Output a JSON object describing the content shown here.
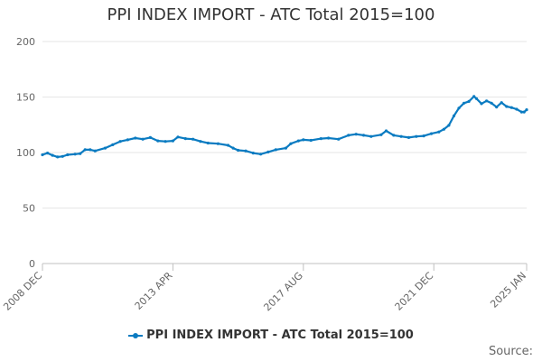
{
  "chart_data": {
    "type": "line",
    "title": "PPI INDEX IMPORT - ATC Total 2015=100",
    "xlabel": "",
    "ylabel": "",
    "ylim": [
      0,
      200
    ],
    "yticks": [
      0,
      50,
      100,
      150,
      200
    ],
    "xlim": [
      "2008-12",
      "2025-01"
    ],
    "xticks": [
      {
        "label": "2008 DEC",
        "x": "2008-12"
      },
      {
        "label": "2013 APR",
        "x": "2013-04"
      },
      {
        "label": "2017 AUG",
        "x": "2017-08"
      },
      {
        "label": "2021 DEC",
        "x": "2021-12"
      },
      {
        "label": "2025 JAN",
        "x": "2025-01"
      }
    ],
    "grid": true,
    "legend_position": "bottom-center",
    "source_label": "Source:",
    "series": [
      {
        "name": "PPI INDEX IMPORT - ATC Total 2015=100",
        "color": "#0a7bc1",
        "points": [
          [
            "2008-12",
            98
          ],
          [
            "2009-02",
            99.5
          ],
          [
            "2009-04",
            97.5
          ],
          [
            "2009-06",
            96
          ],
          [
            "2009-08",
            96.5
          ],
          [
            "2009-10",
            98
          ],
          [
            "2010-01",
            98.5
          ],
          [
            "2010-03",
            99
          ],
          [
            "2010-05",
            102.5
          ],
          [
            "2010-07",
            102.5
          ],
          [
            "2010-09",
            101.5
          ],
          [
            "2011-01",
            104
          ],
          [
            "2011-04",
            107
          ],
          [
            "2011-07",
            110
          ],
          [
            "2011-10",
            111.5
          ],
          [
            "2012-01",
            113
          ],
          [
            "2012-04",
            112
          ],
          [
            "2012-07",
            113.5
          ],
          [
            "2012-10",
            110.5
          ],
          [
            "2013-01",
            110
          ],
          [
            "2013-04",
            110.5
          ],
          [
            "2013-06",
            114
          ],
          [
            "2013-09",
            112.5
          ],
          [
            "2013-12",
            112
          ],
          [
            "2014-03",
            110
          ],
          [
            "2014-06",
            108.5
          ],
          [
            "2014-10",
            108
          ],
          [
            "2015-02",
            106.5
          ],
          [
            "2015-04",
            104
          ],
          [
            "2015-06",
            102
          ],
          [
            "2015-09",
            101.5
          ],
          [
            "2015-12",
            99.5
          ],
          [
            "2016-03",
            98.5
          ],
          [
            "2016-06",
            100.5
          ],
          [
            "2016-09",
            102.5
          ],
          [
            "2017-01",
            104
          ],
          [
            "2017-03",
            108
          ],
          [
            "2017-06",
            110.5
          ],
          [
            "2017-08",
            111.5
          ],
          [
            "2017-11",
            111
          ],
          [
            "2018-03",
            112.5
          ],
          [
            "2018-06",
            113
          ],
          [
            "2018-10",
            112
          ],
          [
            "2019-02",
            115.5
          ],
          [
            "2019-05",
            116.5
          ],
          [
            "2019-08",
            115.5
          ],
          [
            "2019-11",
            114.5
          ],
          [
            "2020-03",
            116
          ],
          [
            "2020-05",
            119.5
          ],
          [
            "2020-08",
            115.5
          ],
          [
            "2020-11",
            114.5
          ],
          [
            "2021-02",
            113.5
          ],
          [
            "2021-05",
            114.5
          ],
          [
            "2021-08",
            115
          ],
          [
            "2021-11",
            117
          ],
          [
            "2022-02",
            118.5
          ],
          [
            "2022-04",
            121
          ],
          [
            "2022-06",
            124.5
          ],
          [
            "2022-08",
            133
          ],
          [
            "2022-10",
            140
          ],
          [
            "2022-12",
            144.5
          ],
          [
            "2023-02",
            146
          ],
          [
            "2023-04",
            150.5
          ],
          [
            "2023-05",
            148.5
          ],
          [
            "2023-07",
            144
          ],
          [
            "2023-09",
            146.5
          ],
          [
            "2023-11",
            144.5
          ],
          [
            "2024-01",
            141
          ],
          [
            "2024-03",
            145
          ],
          [
            "2024-05",
            141.5
          ],
          [
            "2024-07",
            140.5
          ],
          [
            "2024-09",
            139
          ],
          [
            "2024-11",
            136.5
          ],
          [
            "2024-12",
            136.5
          ],
          [
            "2025-01",
            138.5
          ]
        ]
      }
    ]
  }
}
